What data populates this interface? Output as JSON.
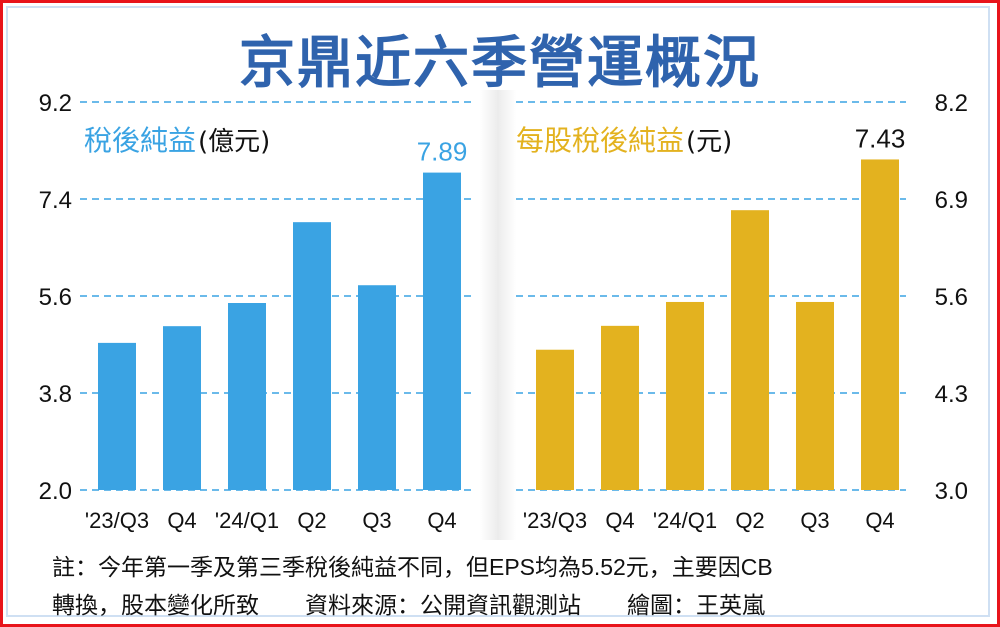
{
  "title": "京鼎近六季營運概況",
  "colors": {
    "left_bar": "#3aa3e3",
    "right_bar": "#e3b21f",
    "grid": "#3aa3e3",
    "title": "#2f63ad"
  },
  "chart_data": [
    {
      "type": "bar",
      "title": "稅後純益",
      "unit": "(億元)",
      "categories": [
        "'23/Q3",
        "Q4",
        "'24/Q1",
        "Q2",
        "Q3",
        "Q4"
      ],
      "values": [
        4.73,
        5.04,
        5.47,
        6.97,
        5.8,
        7.89
      ],
      "data_labels": {
        "5": "7.89"
      },
      "yticks": [
        "2.0",
        "3.8",
        "5.6",
        "7.4",
        "9.2"
      ],
      "ylim": [
        2.0,
        9.2
      ],
      "axis_side": "left",
      "grid": true
    },
    {
      "type": "bar",
      "title": "每股稅後純益",
      "unit": "(元)",
      "categories": [
        "'23/Q3",
        "Q4",
        "'24/Q1",
        "Q2",
        "Q3",
        "Q4"
      ],
      "values": [
        4.88,
        5.2,
        5.52,
        6.75,
        5.52,
        7.43
      ],
      "data_labels": {
        "5": "7.43"
      },
      "yticks": [
        "3.0",
        "4.3",
        "5.6",
        "6.9",
        "8.2"
      ],
      "ylim": [
        3.0,
        8.2
      ],
      "axis_side": "right",
      "grid": true
    }
  ],
  "notes": {
    "line1": "註：今年第一季及第三季稅後純益不同，但EPS均為5.52元，主要因CB",
    "line2": "轉換，股本變化所致　　資料來源：公開資訊觀測站　　繪圖：王英嵐"
  }
}
